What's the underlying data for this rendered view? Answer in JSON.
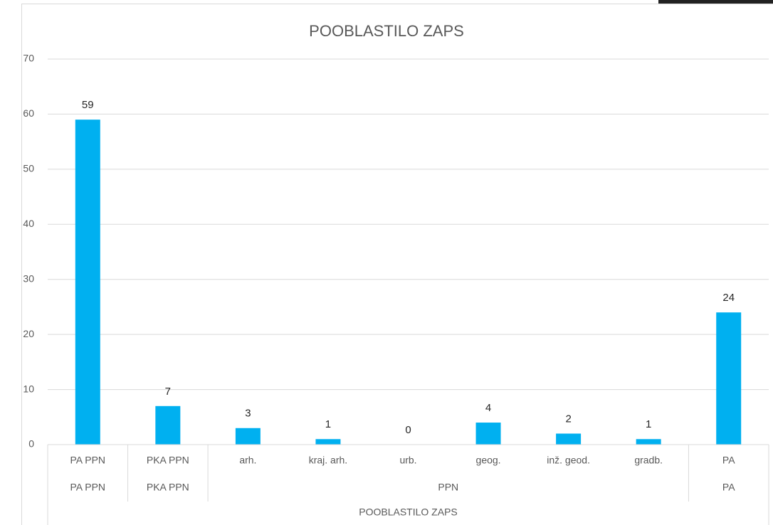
{
  "chart_data": {
    "type": "bar",
    "title": "POOBLASTILO ZAPS",
    "categories": [
      "PA PPN",
      "PKA PPN",
      "arh.",
      "kraj. arh.",
      "urb.",
      "geog.",
      "inž. geod.",
      "gradb.",
      "PA"
    ],
    "group_labels": [
      "PA PPN",
      "PKA PPN",
      "PPN",
      "PPN",
      "PPN",
      "PPN",
      "PPN",
      "PPN",
      "PA"
    ],
    "axis_group": "POOBLASTILO ZAPS",
    "values": [
      59,
      7,
      3,
      1,
      0,
      4,
      2,
      1,
      24
    ],
    "color": "#00b0f0",
    "ylim": [
      0,
      70
    ],
    "yticks": [
      0,
      10,
      20,
      30,
      40,
      50,
      60,
      70
    ],
    "grid": true
  }
}
